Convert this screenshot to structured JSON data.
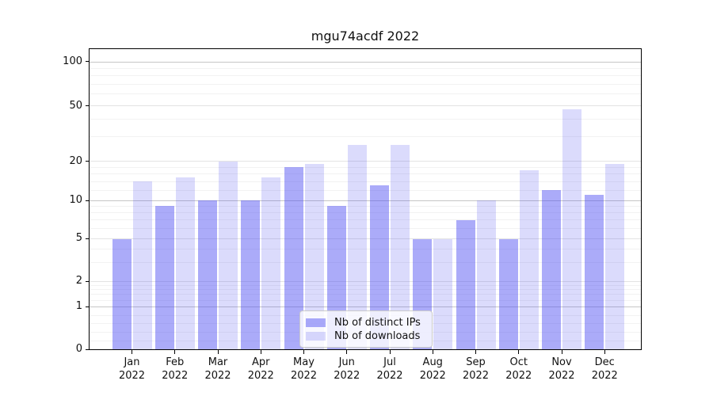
{
  "chart_data": {
    "type": "bar",
    "title": "mgu74acdf 2022",
    "x": {
      "months": [
        "Jan",
        "Feb",
        "Mar",
        "Apr",
        "May",
        "Jun",
        "Jul",
        "Aug",
        "Sep",
        "Oct",
        "Nov",
        "Dec"
      ],
      "year": "2022"
    },
    "series": [
      {
        "name": "Nb of distinct IPs",
        "color": "rgba(77,77,242,0.47)",
        "values": [
          5,
          9,
          10,
          10,
          18,
          9,
          13,
          5,
          7,
          5,
          12,
          11
        ]
      },
      {
        "name": "Nb of downloads",
        "color": "rgba(77,77,242,0.20)",
        "values": [
          14,
          15,
          20,
          15,
          19,
          26,
          26,
          5,
          10,
          17,
          47,
          19
        ]
      }
    ],
    "y_axis": {
      "scale": "symlog",
      "major_ticks": [
        0,
        1,
        2,
        5,
        10,
        20,
        50,
        100
      ],
      "minor_ticks": [
        0.2,
        0.4,
        0.6,
        0.8,
        1.2,
        1.4,
        1.6,
        1.8,
        3,
        4,
        6,
        7,
        8,
        9,
        12,
        14,
        16,
        18,
        30,
        40,
        60,
        70,
        80,
        90
      ]
    },
    "legend": {
      "entries": [
        "Nb of distinct IPs",
        "Nb of downloads"
      ],
      "position": "lower center"
    },
    "grid": true
  }
}
